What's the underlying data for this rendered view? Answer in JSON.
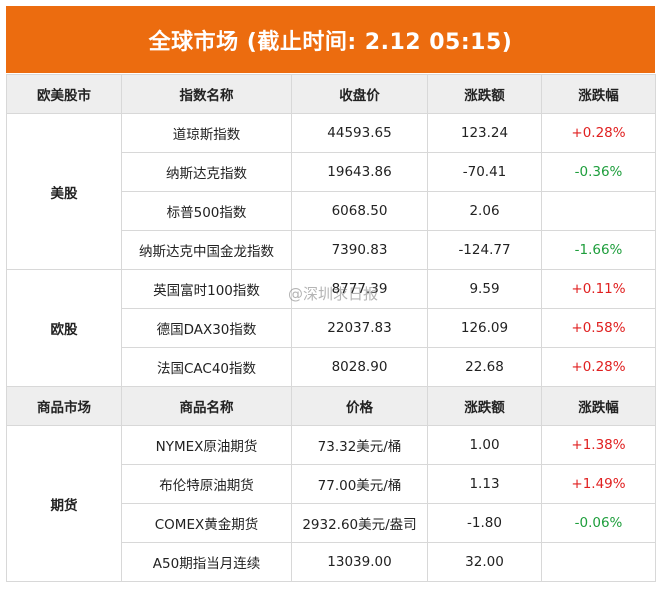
{
  "title": "全球市场 (截止时间: 2.12 05:15)",
  "header": [
    "欧美股市",
    "指数名称",
    "收盘价",
    "涨跌额",
    "涨跌幅"
  ],
  "groups": [
    {
      "label": "美股",
      "rows": [
        {
          "name": "道琼斯指数",
          "close": "44593.65",
          "change": "123.24",
          "pct": "+0.28%",
          "dir": "up"
        },
        {
          "name": "纳斯达克指数",
          "close": "19643.86",
          "change": "-70.41",
          "pct": "-0.36%",
          "dir": "down"
        },
        {
          "name": "标普500指数",
          "close": "6068.50",
          "change": "2.06",
          "pct": "",
          "dir": "up"
        },
        {
          "name": "纳斯达克中国金龙指数",
          "close": "7390.83",
          "change": "-124.77",
          "pct": "-1.66%",
          "dir": "down"
        }
      ]
    },
    {
      "label": "欧股",
      "rows": [
        {
          "name": "英国富时100指数",
          "close": "8777.39",
          "change": "9.59",
          "pct": "+0.11%",
          "dir": "up"
        },
        {
          "name": "德国DAX30指数",
          "close": "22037.83",
          "change": "126.09",
          "pct": "+0.58%",
          "dir": "up"
        },
        {
          "name": "法国CAC40指数",
          "close": "8028.90",
          "change": "22.68",
          "pct": "+0.28%",
          "dir": "up"
        }
      ]
    }
  ],
  "subheader": [
    "商品市场",
    "商品名称",
    "价格",
    "涨跌额",
    "涨跌幅"
  ],
  "commodities": {
    "label": "期货",
    "rows": [
      {
        "name": "NYMEX原油期货",
        "close": "73.32美元/桶",
        "change": "1.00",
        "pct": "+1.38%",
        "dir": "up"
      },
      {
        "name": "布伦特原油期货",
        "close": "77.00美元/桶",
        "change": "1.13",
        "pct": "+1.49%",
        "dir": "up"
      },
      {
        "name": "COMEX黄金期货",
        "close": "2932.60美元/盎司",
        "change": "-1.80",
        "pct": "-0.06%",
        "dir": "down"
      },
      {
        "name": "A50期指当月连续",
        "close": "13039.00",
        "change": "32.00",
        "pct": "",
        "dir": "up"
      }
    ]
  },
  "watermark": "@深圳求日报"
}
